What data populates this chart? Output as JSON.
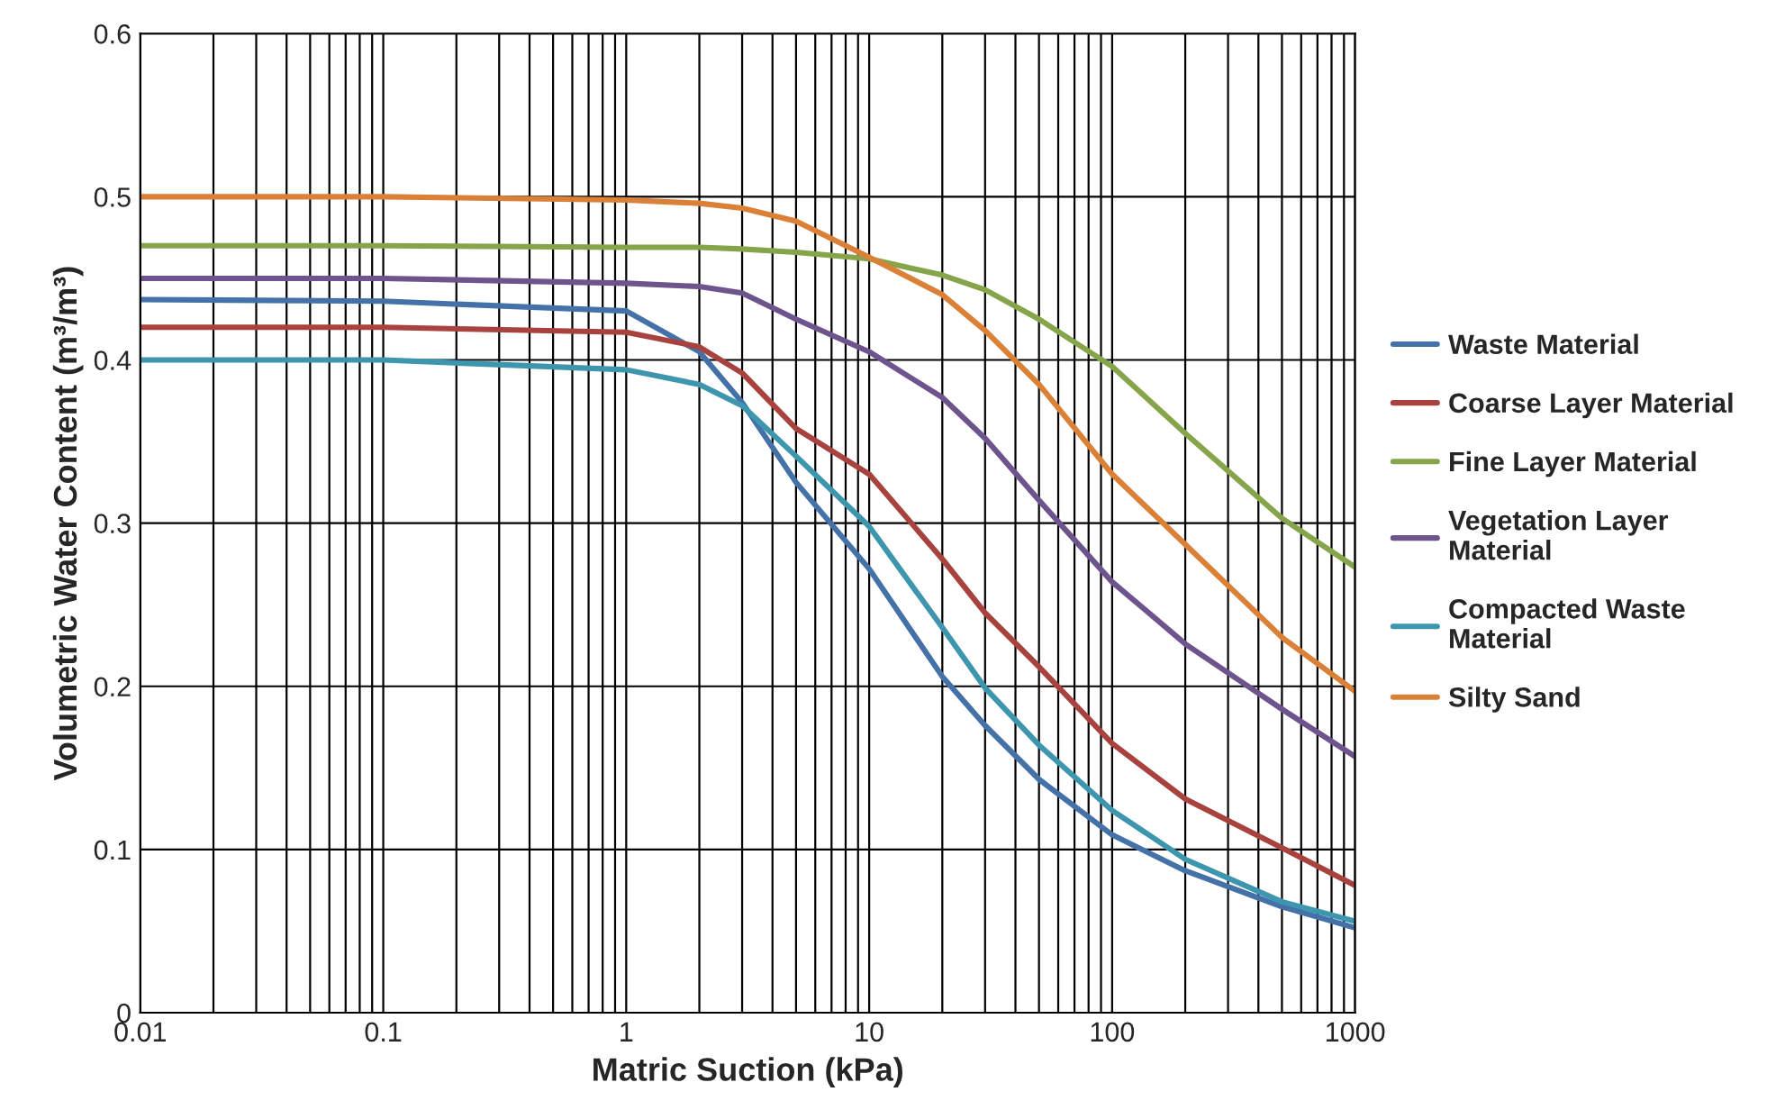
{
  "chart_data": {
    "type": "line",
    "xlabel": "Matric Suction (kPa)",
    "ylabel": "Volumetric Water Content (m³/m³)",
    "log": "x",
    "xlim": [
      0.01,
      1000
    ],
    "xticks": [
      0.01,
      0.1,
      1,
      10,
      100,
      1000
    ],
    "ylim": [
      0,
      0.6
    ],
    "yticks": [
      0,
      0.1,
      0.2,
      0.3,
      0.4,
      0.5,
      0.6
    ],
    "grid": true,
    "legend": "right",
    "marker": "none",
    "line_style": "solid",
    "x": [
      0.01,
      0.1,
      1,
      2,
      3,
      5,
      10,
      20,
      30,
      50,
      100,
      200,
      500,
      1000
    ],
    "series": [
      {
        "name": "Waste Material",
        "color": "#4472a8",
        "values": [
          0.437,
          0.436,
          0.43,
          0.405,
          0.374,
          0.325,
          0.272,
          0.206,
          0.176,
          0.143,
          0.109,
          0.087,
          0.065,
          0.052
        ]
      },
      {
        "name": "Coarse Layer Material",
        "color": "#a8423f",
        "values": [
          0.42,
          0.42,
          0.417,
          0.408,
          0.392,
          0.358,
          0.33,
          0.278,
          0.245,
          0.212,
          0.165,
          0.131,
          0.101,
          0.078
        ]
      },
      {
        "name": "Fine Layer Material",
        "color": "#86a44a",
        "values": [
          0.47,
          0.47,
          0.469,
          0.469,
          0.468,
          0.466,
          0.462,
          0.452,
          0.443,
          0.425,
          0.396,
          0.355,
          0.303,
          0.273
        ]
      },
      {
        "name": "Vegetation Layer Material",
        "color": "#6e548d",
        "values": [
          0.45,
          0.45,
          0.447,
          0.445,
          0.441,
          0.425,
          0.405,
          0.377,
          0.352,
          0.314,
          0.264,
          0.226,
          0.186,
          0.157
        ]
      },
      {
        "name": "Compacted Waste Material",
        "color": "#3d96ae",
        "values": [
          0.4,
          0.4,
          0.394,
          0.385,
          0.372,
          0.341,
          0.298,
          0.236,
          0.199,
          0.164,
          0.124,
          0.094,
          0.068,
          0.056
        ]
      },
      {
        "name": "Silty Sand",
        "color": "#da8137",
        "values": [
          0.5,
          0.5,
          0.498,
          0.496,
          0.493,
          0.485,
          0.463,
          0.44,
          0.418,
          0.385,
          0.33,
          0.287,
          0.23,
          0.197
        ]
      }
    ]
  }
}
